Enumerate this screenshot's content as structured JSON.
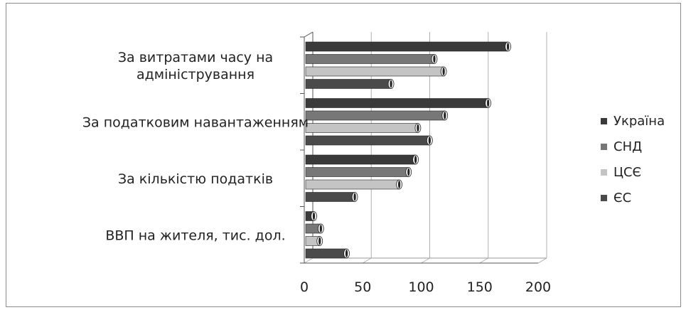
{
  "chart_data": {
    "type": "bar",
    "orientation": "horizontal",
    "categories": [
      [
        "За витратами часу на",
        "адміністрування"
      ],
      [
        "За податковим навантаженням"
      ],
      [
        "За кількістю податків"
      ],
      [
        "ВВП на жителя, тис. дол."
      ]
    ],
    "series": [
      {
        "name": "Україна",
        "color": "#3a3a3a",
        "values": [
          173,
          156,
          94,
          7
        ]
      },
      {
        "name": "СНД",
        "color": "#777777",
        "values": [
          110,
          119,
          88,
          13
        ]
      },
      {
        "name": "ЦСЄ",
        "color": "#c4c4c4",
        "values": [
          118,
          96,
          80,
          12
        ]
      },
      {
        "name": "ЄС",
        "color": "#4a4a4a",
        "values": [
          73,
          106,
          42,
          35
        ]
      }
    ],
    "xticks": [
      "0",
      "50",
      "100",
      "150",
      "200"
    ],
    "xlim": [
      0,
      200
    ],
    "grid": true,
    "legend": "right"
  }
}
